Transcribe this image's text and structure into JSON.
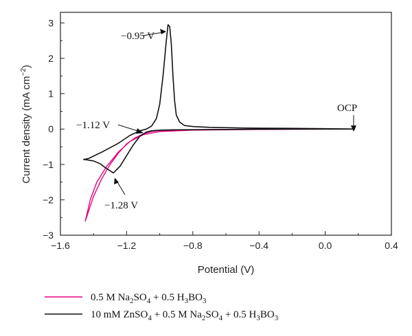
{
  "chart_data": {
    "type": "line",
    "xlabel": "Potential (V)",
    "ylabel_main": "Current density (mA cm",
    "ylabel_sup": "−2",
    "ylabel_tail": ")",
    "xlim": [
      -1.6,
      0.4
    ],
    "ylim": [
      -3,
      3.3
    ],
    "x_ticks": [
      -1.6,
      -1.2,
      -0.8,
      -0.4,
      0.0,
      0.4
    ],
    "x_tick_labels": [
      "−1.6",
      "−1.2",
      "−0.8",
      "−0.4",
      "0.0",
      "0.4"
    ],
    "y_ticks": [
      -3,
      -2,
      -1,
      0,
      1,
      2,
      3
    ],
    "y_tick_labels": [
      "−3",
      "−2",
      "−1",
      "0",
      "1",
      "2",
      "3"
    ],
    "grid": false,
    "legend_position": "bottom",
    "series": [
      {
        "name_parts": [
          "0.5 M Na",
          "2",
          "SO",
          "4",
          " + 0.5 H",
          "3",
          "BO",
          "3"
        ],
        "color": "#e6007e",
        "points": [
          [
            0.18,
            0
          ],
          [
            -0.2,
            0
          ],
          [
            -0.6,
            -0.01
          ],
          [
            -0.9,
            -0.02
          ],
          [
            -1.0,
            -0.04
          ],
          [
            -1.05,
            -0.07
          ],
          [
            -1.1,
            -0.14
          ],
          [
            -1.15,
            -0.25
          ],
          [
            -1.2,
            -0.42
          ],
          [
            -1.25,
            -0.68
          ],
          [
            -1.3,
            -1.0
          ],
          [
            -1.35,
            -1.4
          ],
          [
            -1.4,
            -1.9
          ],
          [
            -1.45,
            -2.6
          ],
          [
            -1.42,
            -2.0
          ],
          [
            -1.38,
            -1.5
          ],
          [
            -1.32,
            -1.05
          ],
          [
            -1.25,
            -0.65
          ],
          [
            -1.18,
            -0.35
          ],
          [
            -1.1,
            -0.16
          ],
          [
            -1.0,
            -0.07
          ],
          [
            -0.8,
            -0.03
          ],
          [
            -0.4,
            -0.01
          ],
          [
            0.18,
            0
          ]
        ]
      },
      {
        "name_parts": [
          "10 mM ZnSO",
          "4",
          " + 0.5 M Na",
          "2",
          "SO",
          "4",
          " + 0.5 H",
          "3",
          "BO",
          "3"
        ],
        "color": "#111111",
        "points": [
          [
            0.18,
            0
          ],
          [
            -0.2,
            0
          ],
          [
            -0.6,
            -0.01
          ],
          [
            -0.9,
            -0.02
          ],
          [
            -1.0,
            -0.03
          ],
          [
            -1.05,
            -0.05
          ],
          [
            -1.08,
            -0.08
          ],
          [
            -1.12,
            -0.2
          ],
          [
            -1.16,
            -0.45
          ],
          [
            -1.2,
            -0.75
          ],
          [
            -1.24,
            -1.05
          ],
          [
            -1.28,
            -1.24
          ],
          [
            -1.32,
            -1.12
          ],
          [
            -1.36,
            -0.98
          ],
          [
            -1.4,
            -0.9
          ],
          [
            -1.44,
            -0.87
          ],
          [
            -1.46,
            -0.86
          ],
          [
            -1.43,
            -0.83
          ],
          [
            -1.35,
            -0.65
          ],
          [
            -1.25,
            -0.4
          ],
          [
            -1.18,
            -0.18
          ],
          [
            -1.12,
            -0.05
          ],
          [
            -1.08,
            0.0
          ],
          [
            -1.05,
            0.08
          ],
          [
            -1.02,
            0.3
          ],
          [
            -1.0,
            0.7
          ],
          [
            -0.98,
            1.5
          ],
          [
            -0.96,
            2.5
          ],
          [
            -0.95,
            2.95
          ],
          [
            -0.94,
            2.9
          ],
          [
            -0.93,
            2.4
          ],
          [
            -0.92,
            1.5
          ],
          [
            -0.91,
            0.8
          ],
          [
            -0.9,
            0.4
          ],
          [
            -0.88,
            0.2
          ],
          [
            -0.85,
            0.1
          ],
          [
            -0.8,
            0.07
          ],
          [
            -0.7,
            0.05
          ],
          [
            -0.5,
            0.03
          ],
          [
            -0.2,
            0.02
          ],
          [
            0.0,
            0.01
          ],
          [
            0.18,
            0
          ]
        ]
      }
    ],
    "annotations": {
      "peak1": {
        "text": "−0.95 V",
        "x": -0.95,
        "y": 2.95
      },
      "peak2": {
        "text": "−1.12 V",
        "x": -1.12,
        "y": 0.0
      },
      "peak3": {
        "text": "−1.28 V",
        "x": -1.28,
        "y": -1.24
      },
      "ocp": {
        "text": "OCP",
        "x": 0.18,
        "y": 0.0
      }
    }
  }
}
